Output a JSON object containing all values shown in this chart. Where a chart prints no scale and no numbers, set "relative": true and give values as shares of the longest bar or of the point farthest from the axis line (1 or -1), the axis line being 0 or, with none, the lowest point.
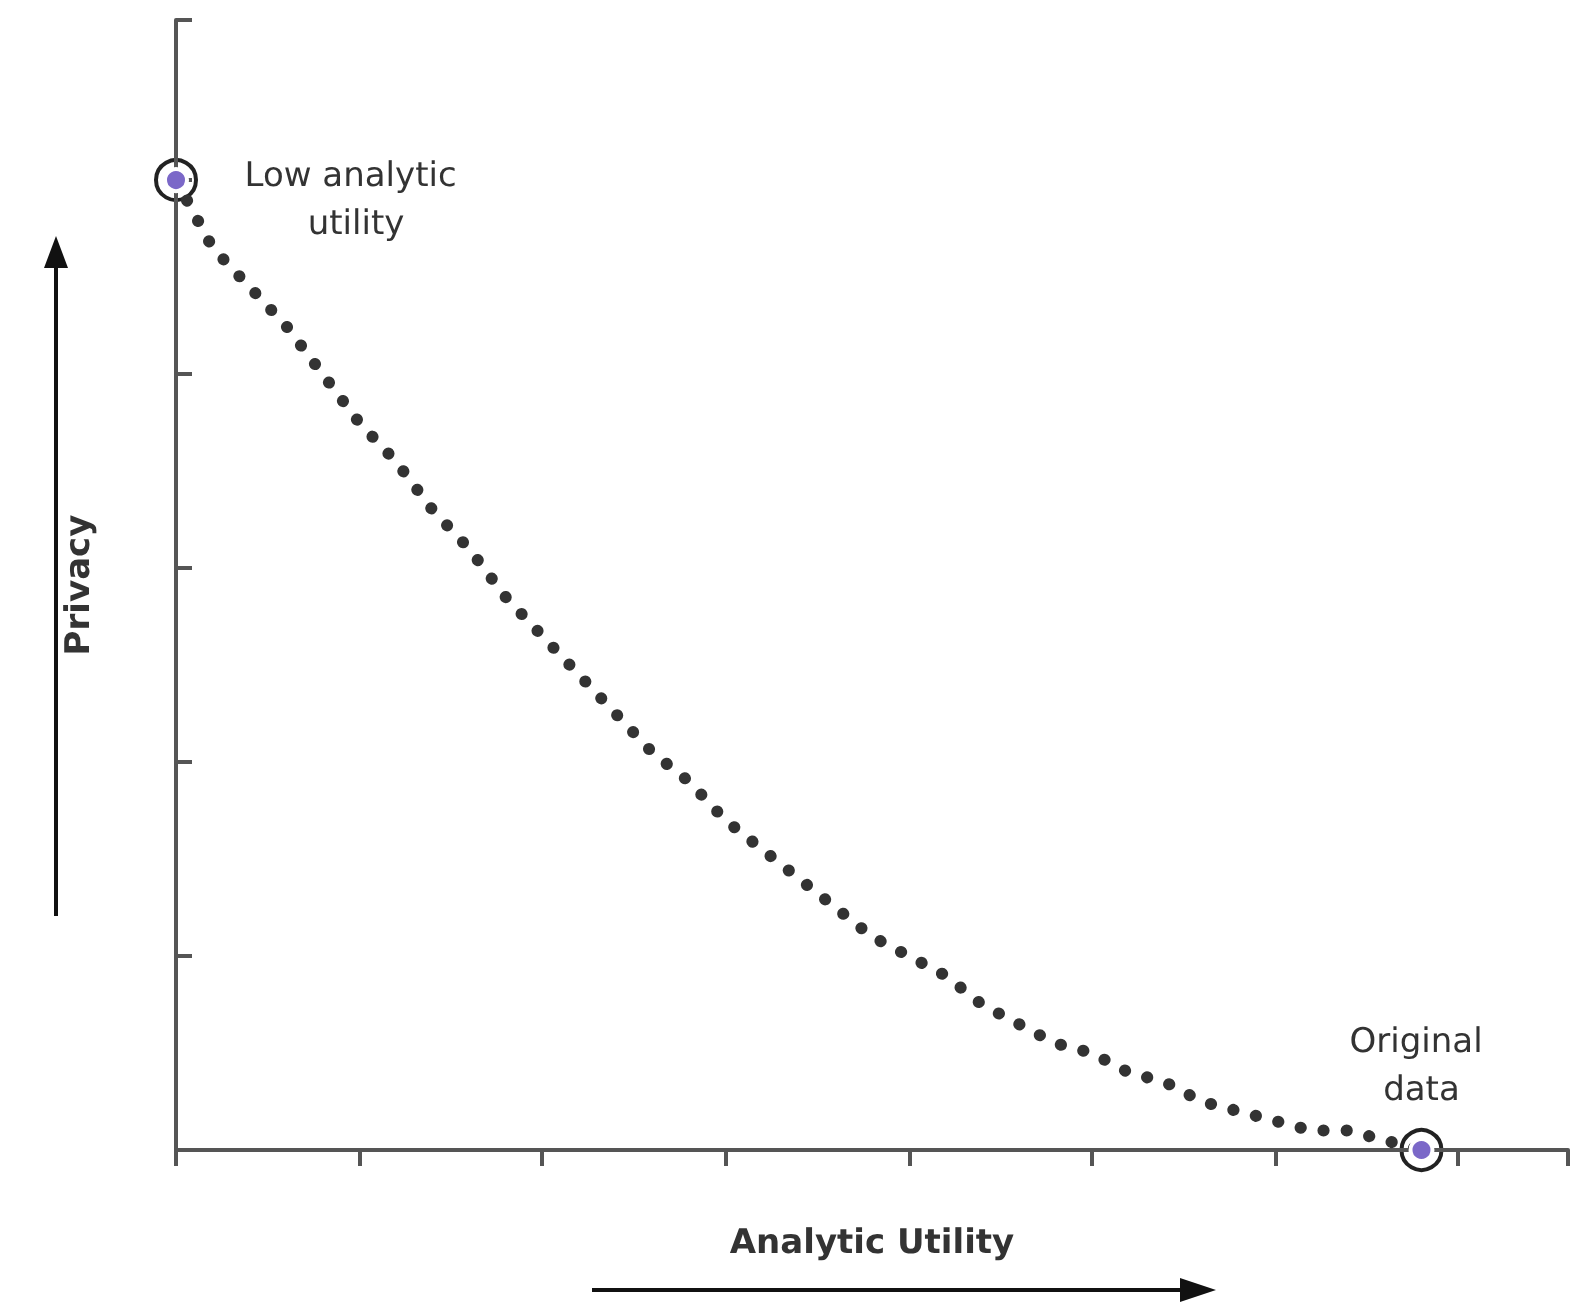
{
  "chart_data": {
    "type": "line",
    "relative": true,
    "xlabel": "Analytic Utility",
    "ylabel": "Privacy",
    "categories": [
      null,
      null,
      null,
      null,
      null,
      null,
      null,
      null,
      null,
      null,
      null,
      null,
      null,
      null,
      null,
      null,
      null,
      null,
      null,
      null,
      null,
      null,
      null,
      null,
      null,
      null,
      null,
      null,
      null,
      null,
      null,
      null,
      null,
      null,
      null,
      null,
      null,
      null,
      null
    ],
    "series": [
      {
        "color": "#333333",
        "values": [
          1,
          0.93,
          0.89,
          0.85,
          0.8,
          0.75,
          0.71,
          0.66,
          0.62,
          0.57,
          0.53,
          0.49,
          0.45,
          0.41,
          0.38,
          0.34,
          0.31,
          0.28,
          0.25,
          0.22,
          0.2,
          0.18,
          0.15,
          0.13,
          0.11,
          0.1,
          0.08,
          0.07,
          0.05,
          0.04,
          0.03,
          0.02,
          0.02,
          0.01,
          0,
          null,
          null,
          null,
          null
        ],
        "colors": [
          "#7b68c8",
          null,
          null,
          null,
          null,
          null,
          null,
          null,
          null,
          null,
          null,
          null,
          null,
          null,
          null,
          null,
          null,
          null,
          null,
          null,
          null,
          null,
          null,
          null,
          null,
          null,
          null,
          null,
          null,
          null,
          null,
          null,
          null,
          null,
          "#7b68c8",
          null,
          null,
          null,
          null
        ]
      }
    ],
    "annotations": [
      "Low analytic utility",
      "Original data"
    ],
    "line_style": "dotted",
    "grid": false
  }
}
